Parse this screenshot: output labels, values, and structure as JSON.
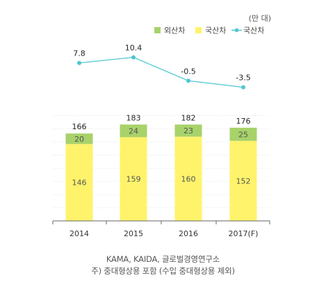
{
  "chart_data": {
    "type": "bar",
    "unit_label": "(만 대)",
    "categories": [
      "2014",
      "2015",
      "2016",
      "2017(F)"
    ],
    "series": [
      {
        "name": "국산차",
        "values": [
          146,
          159,
          160,
          152
        ],
        "color": "#fff36b"
      },
      {
        "name": "외산차",
        "values": [
          20,
          24,
          23,
          25
        ],
        "color": "#a8d26a"
      }
    ],
    "totals": [
      166,
      183,
      182,
      176
    ],
    "line_series": {
      "name": "국산차",
      "values": [
        7.8,
        10.4,
        -0.5,
        -3.5
      ],
      "color": "#4ec6d2"
    },
    "ylim": [
      0,
      200
    ],
    "grid": true,
    "legend_placement": "top-right",
    "legend": [
      {
        "name": "외산차",
        "color": "#a8d26a",
        "kind": "square"
      },
      {
        "name": "국산차",
        "color": "#fff36b",
        "kind": "square"
      },
      {
        "name": "국산차",
        "color": "#4ec6d2",
        "kind": "line"
      }
    ]
  },
  "source": {
    "line1": "KAMA, KAIDA, 글로벌경영연구소",
    "line2": "주) 중대형상용 포함 (수입 중대형상용 제외)"
  }
}
